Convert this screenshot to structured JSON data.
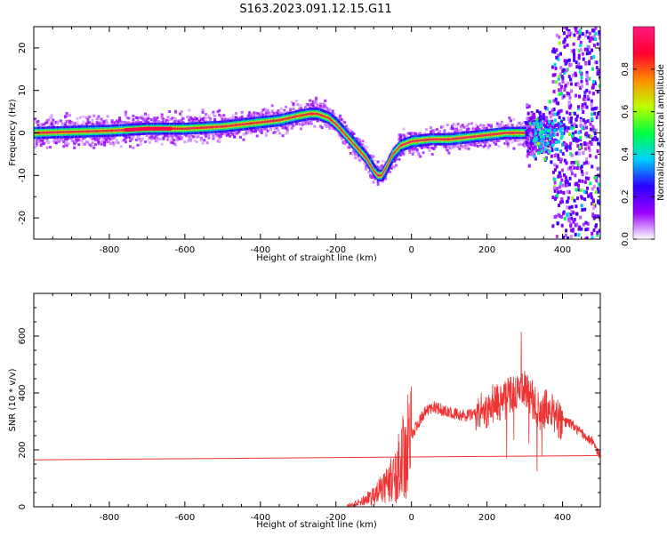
{
  "title": "S163.2023.091.12.15.G11",
  "chart_data": [
    {
      "type": "heatmap",
      "xlabel": "Height of straight line (km)",
      "ylabel": "Frequency (Hz)",
      "xlim": [
        -1000,
        500
      ],
      "ylim": [
        -25,
        25
      ],
      "xticks": [
        -800,
        -600,
        -400,
        -200,
        0,
        200,
        400
      ],
      "yticks": [
        -20,
        -10,
        0,
        10,
        20
      ],
      "grid": false,
      "colorbar": {
        "label": "Normalized spectral amplitude",
        "range": [
          0,
          1
        ],
        "ticks": [
          "0.0",
          "0.2",
          "0.4",
          "0.6",
          "0.8"
        ],
        "colors": [
          "#ffffff",
          "#9a00ff",
          "#2a00ff",
          "#00d0ff",
          "#00ff40",
          "#c0ff00",
          "#ff8a00",
          "#ff0030",
          "#ff1a80"
        ]
      },
      "ridge": {
        "x": [
          -1000,
          -800,
          -700,
          -600,
          -500,
          -450,
          -400,
          -350,
          -300,
          -270,
          -250,
          -220,
          -200,
          -180,
          -150,
          -120,
          -100,
          -90,
          -80,
          -70,
          -50,
          -30,
          0,
          50,
          100,
          150,
          200,
          250,
          300,
          320,
          350,
          380,
          400,
          450,
          500
        ],
        "y": [
          0,
          0.5,
          1,
          1,
          1.5,
          2,
          2.5,
          3,
          4,
          4.5,
          4.5,
          3.5,
          2,
          0,
          -3,
          -6,
          -9,
          -10,
          -10,
          -8.5,
          -5,
          -3,
          -2,
          -1.5,
          -1.5,
          -1,
          -0.5,
          0,
          0,
          0,
          0,
          0,
          0,
          0,
          0
        ]
      }
    },
    {
      "type": "line",
      "xlabel": "Height of straight line (km)",
      "ylabel": "SNR (10 * v/v)",
      "xlim": [
        -1000,
        500
      ],
      "ylim": [
        0,
        750
      ],
      "xticks": [
        -800,
        -600,
        -400,
        -200,
        0,
        200,
        400
      ],
      "yticks": [
        0,
        200,
        400,
        600
      ],
      "grid": false,
      "color": "#ee3333",
      "series": [
        {
          "x": [
            -170,
            -150,
            -120,
            -100,
            -80,
            -60,
            -40,
            -20,
            0,
            20,
            40,
            60,
            100,
            150,
            180,
            200,
            220,
            240,
            260,
            280,
            300,
            320,
            340,
            360,
            380,
            400,
            420,
            440,
            460,
            480,
            500
          ],
          "values": [
            5,
            10,
            25,
            40,
            60,
            80,
            120,
            180,
            250,
            300,
            340,
            350,
            330,
            320,
            330,
            340,
            370,
            360,
            390,
            400,
            420,
            380,
            330,
            350,
            320,
            300,
            295,
            270,
            250,
            230,
            180
          ]
        },
        {
          "x": [
            -1000,
            500
          ],
          "values": [
            165,
            180
          ]
        }
      ]
    }
  ]
}
